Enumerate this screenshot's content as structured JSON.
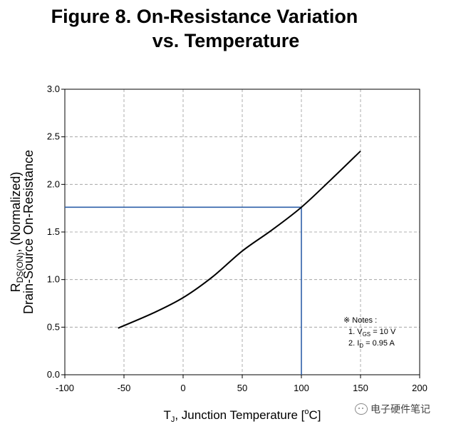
{
  "title": {
    "line1": "Figure 8. On-Resistance Variation",
    "line2": "vs. Temperature"
  },
  "chart_data": {
    "type": "line",
    "title": "Figure 8. On-Resistance Variation vs. Temperature",
    "x": [
      -55,
      -25,
      0,
      25,
      50,
      75,
      100,
      125,
      150
    ],
    "series": [
      {
        "name": "RDS(ON) normalized",
        "values": [
          0.49,
          0.65,
          0.81,
          1.03,
          1.3,
          1.52,
          1.76,
          2.05,
          2.35
        ]
      }
    ],
    "xlim": [
      -100,
      200
    ],
    "ylim": [
      0,
      3.0
    ],
    "xticks": [
      "-100",
      "-50",
      "0",
      "50",
      "100",
      "150",
      "200"
    ],
    "yticks": [
      "0.0",
      "0.5",
      "1.0",
      "1.5",
      "2.0",
      "2.5",
      "3.0"
    ],
    "xlabel": {
      "prefix": "T",
      "sub": "J",
      "main": ", Junction Temperature [",
      "sup": "o",
      "suffix": "C]"
    },
    "ylabel": {
      "line1": "Drain-Source On-Resistance",
      "line2_prefix": "R",
      "line2_sub": "DS(ON)",
      "line2_suffix": ", (Normalized)"
    },
    "reference": {
      "x": 100,
      "y": 1.76
    },
    "grid": true,
    "notes": {
      "header": "※ Notes :",
      "n1_prefix": "1. V",
      "n1_sub": "GS",
      "n1_suffix": " = 10 V",
      "n2_prefix": "2. I",
      "n2_sub": "D",
      "n2_suffix": " = 0.95 A"
    }
  },
  "watermark": {
    "text": "电子硬件笔记"
  }
}
